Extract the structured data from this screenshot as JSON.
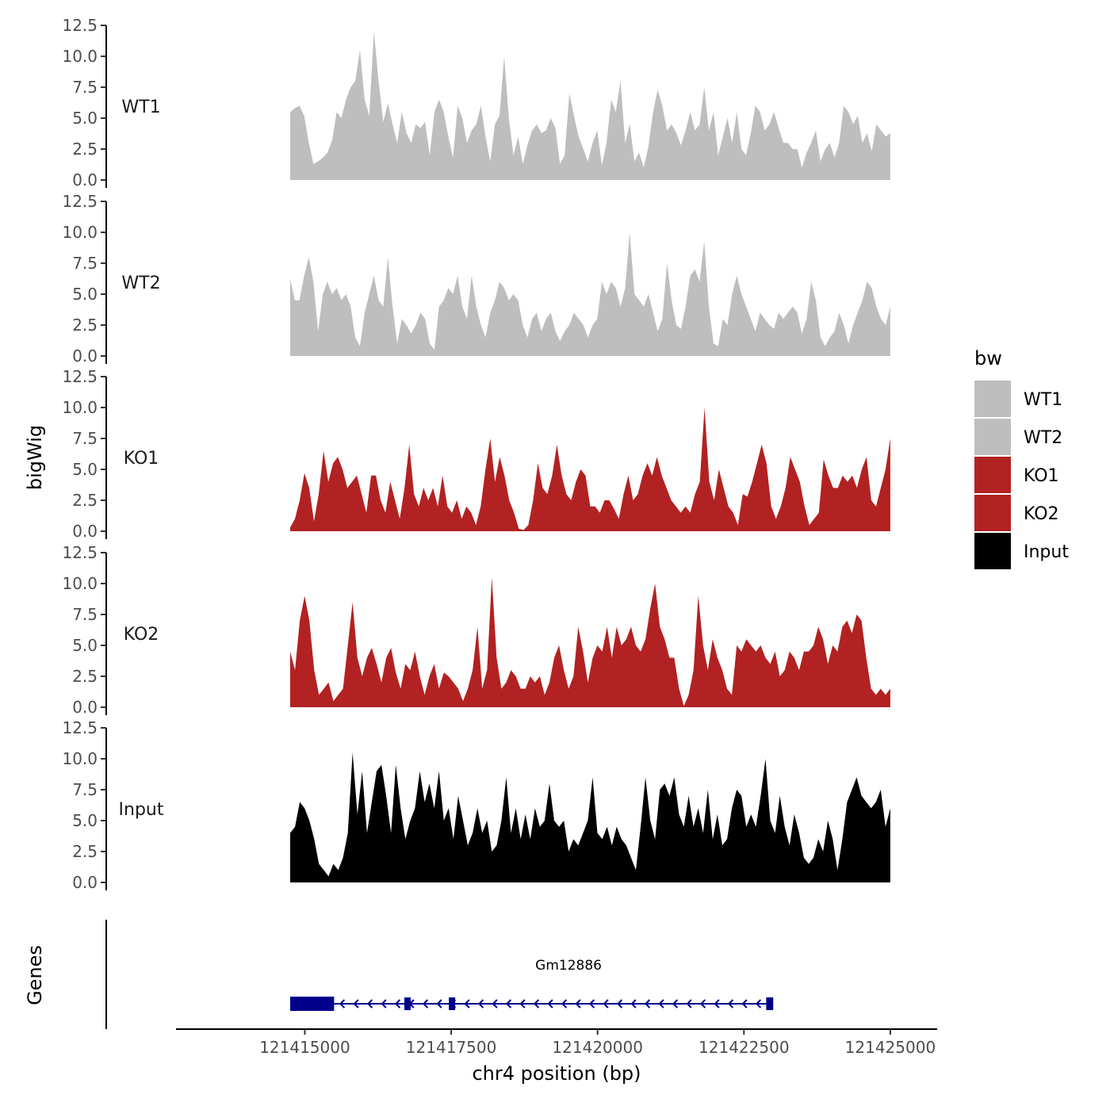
{
  "chart_data": {
    "type": "area",
    "ylabel": "bigWig",
    "xlabel": "chr4 position (bp)",
    "genes_label": "Genes",
    "ylim": [
      0,
      12.5
    ],
    "yticks": [
      "0.0",
      "2.5",
      "5.0",
      "7.5",
      "10.0",
      "12.5"
    ],
    "xlim": [
      121412800,
      121425800
    ],
    "xticks": [
      {
        "value": 121415000,
        "label": "121415000"
      },
      {
        "value": 121417500,
        "label": "121417500"
      },
      {
        "value": 121420000,
        "label": "121420000"
      },
      {
        "value": 121422500,
        "label": "121422500"
      },
      {
        "value": 121425000,
        "label": "121425000"
      }
    ],
    "legend": {
      "title": "bw",
      "position": "right",
      "entries": [
        {
          "label": "WT1",
          "color": "#bebebe"
        },
        {
          "label": "WT2",
          "color": "#bebebe"
        },
        {
          "label": "KO1",
          "color": "#b22222"
        },
        {
          "label": "KO2",
          "color": "#b22222"
        },
        {
          "label": "Input",
          "color": "#000000"
        }
      ]
    },
    "series": [
      {
        "name": "WT1",
        "color": "#bebebe",
        "x_start": 121414750,
        "x_end": 121425000,
        "values": [
          5.5,
          5.8,
          6.0,
          5.2,
          3.0,
          1.3,
          1.5,
          1.8,
          2.2,
          3.2,
          5.5,
          5.0,
          6.5,
          7.5,
          8.0,
          10.5,
          6.5,
          5.2,
          12.0,
          8.0,
          4.7,
          6.2,
          4.5,
          3.0,
          5.5,
          3.8,
          3.0,
          4.5,
          4.2,
          4.7,
          2.0,
          5.5,
          6.5,
          5.5,
          3.5,
          1.8,
          6.0,
          5.0,
          3.0,
          4.0,
          4.5,
          6.0,
          3.5,
          1.5,
          4.5,
          5.2,
          10.0,
          5.0,
          2.0,
          3.5,
          1.3,
          2.8,
          4.0,
          4.5,
          3.8,
          4.0,
          5.0,
          4.2,
          1.3,
          2.0,
          7.0,
          5.2,
          3.5,
          2.5,
          1.5,
          3.0,
          4.0,
          1.2,
          3.0,
          6.5,
          5.5,
          8.0,
          3.0,
          4.5,
          1.5,
          2.2,
          1.0,
          2.7,
          5.5,
          7.3,
          6.0,
          4.0,
          4.5,
          3.8,
          2.8,
          4.0,
          5.5,
          4.0,
          4.5,
          7.5,
          4.0,
          5.5,
          2.0,
          3.5,
          5.0,
          3.0,
          5.5,
          2.5,
          2.0,
          3.8,
          6.0,
          5.5,
          4.0,
          4.5,
          5.5,
          4.2,
          3.0,
          3.0,
          2.5,
          2.5,
          1.0,
          2.2,
          3.0,
          4.0,
          1.5,
          2.5,
          3.0,
          1.8,
          3.0,
          6.0,
          5.5,
          4.5,
          5.2,
          3.0,
          3.8,
          2.3,
          4.5,
          4.0,
          3.5,
          3.8
        ]
      },
      {
        "name": "WT2",
        "color": "#bebebe",
        "x_start": 121414750,
        "x_end": 121425000,
        "values": [
          6.2,
          4.5,
          4.5,
          6.5,
          8.0,
          6.0,
          2.0,
          5.0,
          6.0,
          5.0,
          5.5,
          4.5,
          5.0,
          4.0,
          1.5,
          0.8,
          3.5,
          5.0,
          6.5,
          4.5,
          4.0,
          8.0,
          4.0,
          1.0,
          3.0,
          2.5,
          1.8,
          2.5,
          3.5,
          3.0,
          1.0,
          0.5,
          4.0,
          4.5,
          5.5,
          5.0,
          6.5,
          4.0,
          3.0,
          6.5,
          4.0,
          2.5,
          1.5,
          3.5,
          4.5,
          6.0,
          5.5,
          4.5,
          5.0,
          4.5,
          2.5,
          1.5,
          3.0,
          3.5,
          2.0,
          3.0,
          3.5,
          2.0,
          1.2,
          2.0,
          2.5,
          3.5,
          3.0,
          2.5,
          1.5,
          2.5,
          3.0,
          6.0,
          5.0,
          6.0,
          5.5,
          4.0,
          5.5,
          10.0,
          5.0,
          4.5,
          4.0,
          5.0,
          3.5,
          2.0,
          3.0,
          7.5,
          4.5,
          2.5,
          2.2,
          4.0,
          6.5,
          7.0,
          6.0,
          9.3,
          4.0,
          1.0,
          0.8,
          3.0,
          2.5,
          5.0,
          6.5,
          5.0,
          4.0,
          3.0,
          2.0,
          3.5,
          3.0,
          2.5,
          2.2,
          3.5,
          3.0,
          3.5,
          4.0,
          3.5,
          1.8,
          3.0,
          6.0,
          4.5,
          1.5,
          0.8,
          1.5,
          2.0,
          3.5,
          2.5,
          1.0,
          2.5,
          3.5,
          4.5,
          6.0,
          5.5,
          4.0,
          3.0,
          2.5,
          4.0
        ]
      },
      {
        "name": "KO1",
        "color": "#b22222",
        "x_start": 121414750,
        "x_end": 121425000,
        "values": [
          0.3,
          1.0,
          2.5,
          4.7,
          3.5,
          0.8,
          3.0,
          6.5,
          4.0,
          5.5,
          6.0,
          5.0,
          3.5,
          4.0,
          4.5,
          3.0,
          1.5,
          4.5,
          4.5,
          2.5,
          1.5,
          4.0,
          2.5,
          1.0,
          3.5,
          7.0,
          3.0,
          2.0,
          3.5,
          2.5,
          3.5,
          2.0,
          4.5,
          2.0,
          1.5,
          2.5,
          1.0,
          2.0,
          1.5,
          0.5,
          2.0,
          5.0,
          7.5,
          4.0,
          6.0,
          4.5,
          2.5,
          1.5,
          0.2,
          0.1,
          0.5,
          2.5,
          5.5,
          3.5,
          3.0,
          4.5,
          7.0,
          4.5,
          3.0,
          2.5,
          4.0,
          5.0,
          4.5,
          2.0,
          2.0,
          1.5,
          2.5,
          2.5,
          1.8,
          1.0,
          3.0,
          4.5,
          2.5,
          3.0,
          4.5,
          5.5,
          4.5,
          6.0,
          4.5,
          3.5,
          2.5,
          2.0,
          1.5,
          2.0,
          1.5,
          3.0,
          4.0,
          10.0,
          4.0,
          2.5,
          5.0,
          3.5,
          2.0,
          1.5,
          0.5,
          3.0,
          2.8,
          4.0,
          5.5,
          7.0,
          5.5,
          2.0,
          1.0,
          2.0,
          3.5,
          6.0,
          5.0,
          4.0,
          2.0,
          0.5,
          1.0,
          1.5,
          5.8,
          4.5,
          3.5,
          3.5,
          4.5,
          4.0,
          4.5,
          3.5,
          5.0,
          6.0,
          2.5,
          2.0,
          3.5,
          5.0,
          7.5
        ]
      },
      {
        "name": "KO2",
        "color": "#b22222",
        "x_start": 121414750,
        "x_end": 121425000,
        "values": [
          4.5,
          3.0,
          7.0,
          9.0,
          7.0,
          3.0,
          1.0,
          1.5,
          2.0,
          0.5,
          1.0,
          1.5,
          5.0,
          8.5,
          4.0,
          2.5,
          4.0,
          4.8,
          3.5,
          2.0,
          4.0,
          4.8,
          2.8,
          1.5,
          3.5,
          3.0,
          4.5,
          2.5,
          1.0,
          2.5,
          3.5,
          1.5,
          2.8,
          2.5,
          2.0,
          1.5,
          0.5,
          1.5,
          3.0,
          6.5,
          1.5,
          3.0,
          10.5,
          4.0,
          1.5,
          2.0,
          3.0,
          2.5,
          1.5,
          1.5,
          2.5,
          2.0,
          2.5,
          1.0,
          2.0,
          4.0,
          5.0,
          3.0,
          1.5,
          2.5,
          6.5,
          4.5,
          2.0,
          4.0,
          5.0,
          4.5,
          6.5,
          4.0,
          6.5,
          5.0,
          5.5,
          6.5,
          5.0,
          4.5,
          5.5,
          8.0,
          10.0,
          6.5,
          5.5,
          4.0,
          4.0,
          1.5,
          0.1,
          1.0,
          3.0,
          9.0,
          5.0,
          3.0,
          5.5,
          4.0,
          3.0,
          1.5,
          1.0,
          5.0,
          4.5,
          5.5,
          5.0,
          4.5,
          5.0,
          4.0,
          3.5,
          4.5,
          2.5,
          3.0,
          4.5,
          4.0,
          3.0,
          4.5,
          4.5,
          5.0,
          6.5,
          5.5,
          3.5,
          5.0,
          4.5,
          6.5,
          7.0,
          6.0,
          7.5,
          7.0,
          4.0,
          1.5,
          1.0,
          1.5,
          1.0,
          1.5
        ]
      },
      {
        "name": "Input",
        "color": "#000000",
        "x_start": 121414750,
        "x_end": 121425000,
        "values": [
          4.0,
          4.5,
          6.5,
          6.0,
          5.0,
          3.5,
          1.5,
          1.0,
          0.5,
          1.5,
          1.0,
          2.0,
          4.0,
          10.5,
          5.5,
          9.0,
          4.0,
          6.5,
          9.0,
          9.5,
          7.0,
          4.0,
          9.5,
          6.0,
          3.5,
          5.0,
          6.0,
          9.0,
          6.5,
          8.0,
          6.0,
          9.0,
          5.0,
          6.0,
          3.5,
          7.0,
          5.0,
          3.0,
          4.0,
          6.0,
          4.0,
          5.0,
          2.5,
          3.0,
          5.0,
          8.5,
          4.0,
          6.0,
          3.5,
          5.5,
          3.5,
          6.0,
          4.5,
          5.0,
          8.0,
          5.0,
          4.5,
          5.0,
          2.5,
          3.5,
          3.0,
          4.0,
          5.0,
          8.5,
          4.0,
          3.5,
          4.5,
          3.0,
          4.5,
          3.5,
          3.0,
          2.0,
          1.0,
          4.5,
          8.5,
          5.0,
          3.5,
          7.5,
          8.0,
          7.0,
          8.5,
          5.5,
          4.5,
          7.0,
          4.5,
          6.0,
          4.0,
          7.5,
          3.5,
          5.5,
          3.0,
          3.5,
          6.0,
          7.5,
          7.0,
          4.5,
          5.5,
          4.5,
          7.0,
          10.0,
          5.0,
          4.0,
          7.0,
          4.5,
          3.0,
          5.5,
          4.0,
          2.0,
          1.5,
          2.0,
          3.5,
          2.5,
          5.0,
          3.5,
          1.0,
          3.5,
          6.5,
          7.5,
          8.5,
          7.0,
          6.5,
          6.0,
          6.5,
          7.5,
          4.5,
          6.0
        ]
      }
    ],
    "gene_track": {
      "gene_name": "Gm12886",
      "strand": "-",
      "color": "#00008b",
      "start": 121414750,
      "end": 121423000,
      "exons": [
        {
          "start": 121414750,
          "end": 121415500,
          "thick": true
        },
        {
          "start": 121416700,
          "end": 121416800,
          "thick": false
        },
        {
          "start": 121417460,
          "end": 121417540,
          "thick": false
        },
        {
          "start": 121422880,
          "end": 121423000,
          "thick": false
        }
      ]
    }
  }
}
